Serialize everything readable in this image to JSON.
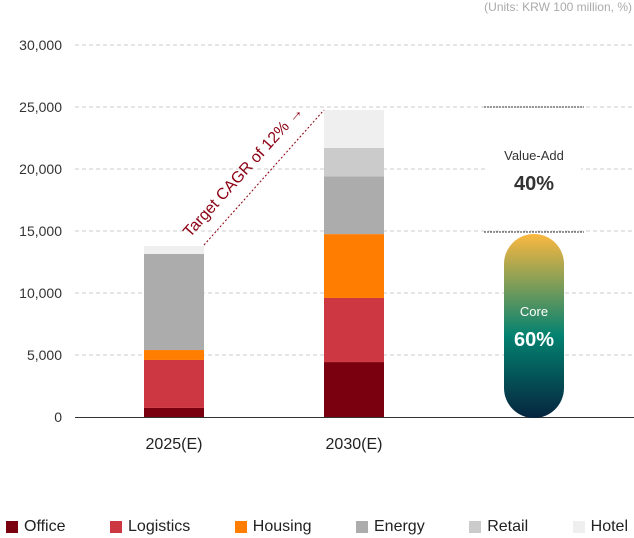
{
  "units_note": "(Units: KRW 100 million, %)",
  "chart_data": {
    "type": "bar",
    "stacked": true,
    "categories": [
      "2025(E)",
      "2030(E)"
    ],
    "ylim": [
      0,
      30000
    ],
    "yticks": [
      0,
      5000,
      10000,
      15000,
      20000,
      25000,
      30000
    ],
    "ytick_labels": [
      "0",
      "5,000",
      "10,000",
      "15,000",
      "20,000",
      "25,000",
      "30,000"
    ],
    "grid": true,
    "legend_placement": "bottom",
    "series": [
      {
        "name": "Office",
        "color": "#7a0010",
        "values": [
          730,
          4430
        ]
      },
      {
        "name": "Logistics",
        "color": "#cc3742",
        "values": [
          3870,
          5170
        ]
      },
      {
        "name": "Housing",
        "color": "#ff7d00",
        "values": [
          800,
          5150
        ]
      },
      {
        "name": "Energy",
        "color": "#acacac",
        "values": [
          7750,
          4650
        ]
      },
      {
        "name": "Retail",
        "color": "#cbcbcb",
        "values": [
          0,
          2300
        ]
      },
      {
        "name": "Hotel",
        "color": "#efefef",
        "values": [
          640,
          3060
        ]
      }
    ],
    "annotation": "Target CAGR of 12%",
    "annotation_color": "#8b0012",
    "mix": {
      "value_add_label": "Value-Add",
      "value_add_pct": "40%",
      "core_label": "Core",
      "core_pct": "60%",
      "range": [
        15000,
        25000
      ]
    }
  }
}
